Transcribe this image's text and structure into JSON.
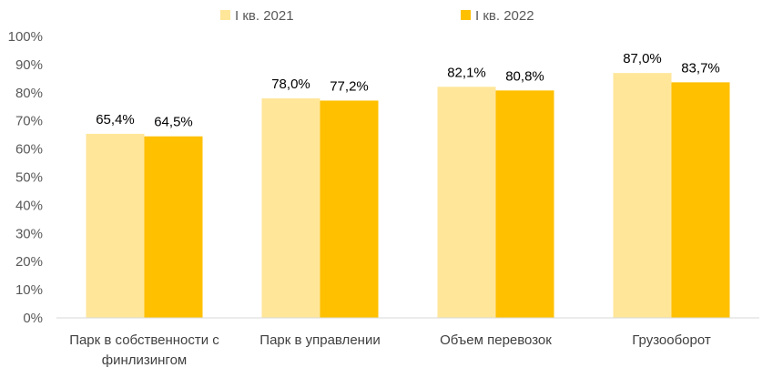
{
  "chart_data": {
    "type": "bar",
    "title": "",
    "xlabel": "",
    "ylabel": "",
    "ylim": [
      0,
      100
    ],
    "y_ticks": [
      "0%",
      "10%",
      "20%",
      "30%",
      "40%",
      "50%",
      "60%",
      "70%",
      "80%",
      "90%",
      "100%"
    ],
    "grid": false,
    "legend_position": "top",
    "categories": [
      [
        "Парк в собственности с",
        "финлизингом"
      ],
      [
        "Парк в управлении"
      ],
      [
        "Объем перевозок"
      ],
      [
        "Грузооборот"
      ]
    ],
    "series": [
      {
        "name": "I кв. 2021",
        "color": "#FFE699",
        "values": [
          65.4,
          78.0,
          82.1,
          87.0
        ],
        "labels": [
          "65,4%",
          "78,0%",
          "82,1%",
          "87,0%"
        ]
      },
      {
        "name": "I кв. 2022",
        "color": "#FFC000",
        "values": [
          64.5,
          77.2,
          80.8,
          83.7
        ],
        "labels": [
          "64,5%",
          "77,2%",
          "80,8%",
          "83,7%"
        ]
      }
    ]
  }
}
